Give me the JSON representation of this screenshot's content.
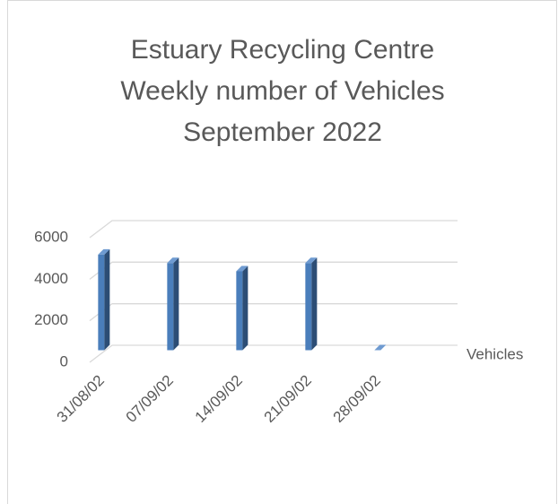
{
  "chart_data": {
    "type": "bar3d",
    "title": [
      "Estuary Recycling Centre",
      "Weekly number of Vehicles",
      "September 2022"
    ],
    "categories": [
      "31/08/02",
      "07/09/02",
      "14/09/02",
      "21/09/02",
      "28/09/02"
    ],
    "series": [
      {
        "name": "Vehicles",
        "color": "#4a7ebb",
        "values": [
          4600,
          4200,
          3800,
          4200,
          0
        ]
      }
    ],
    "ylim": [
      0,
      6000
    ],
    "yticks": [
      0,
      2000,
      4000,
      6000
    ],
    "grid": true,
    "legend": "right"
  }
}
